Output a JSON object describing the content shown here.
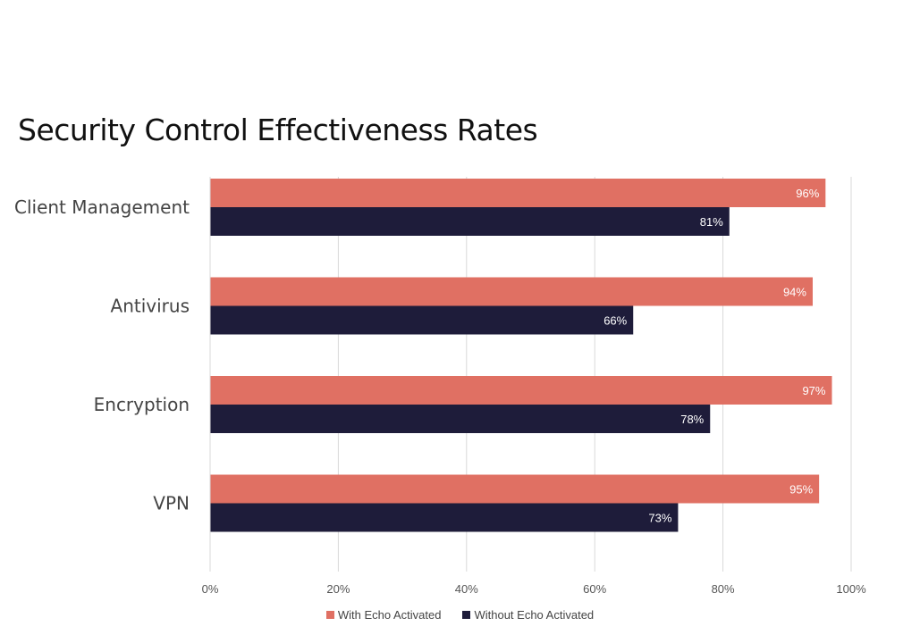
{
  "chart_data": {
    "type": "bar",
    "orientation": "horizontal",
    "title": "Security Control Effectiveness Rates",
    "categories": [
      "Client Management",
      "Antivirus",
      "Encryption",
      "VPN"
    ],
    "series": [
      {
        "name": "With Echo Activated",
        "color": "#E07063",
        "values": [
          96,
          94,
          97,
          95
        ]
      },
      {
        "name": "Without Echo Activated",
        "color": "#1E1C3A",
        "values": [
          81,
          66,
          78,
          73
        ]
      }
    ],
    "xlim": [
      0,
      100
    ],
    "xticks": [
      0,
      20,
      40,
      60,
      80,
      100
    ],
    "tick_suffix": "%",
    "data_label_suffix": "%",
    "xlabel": "",
    "ylabel": "",
    "grid": true,
    "legend": "bottom-center"
  }
}
